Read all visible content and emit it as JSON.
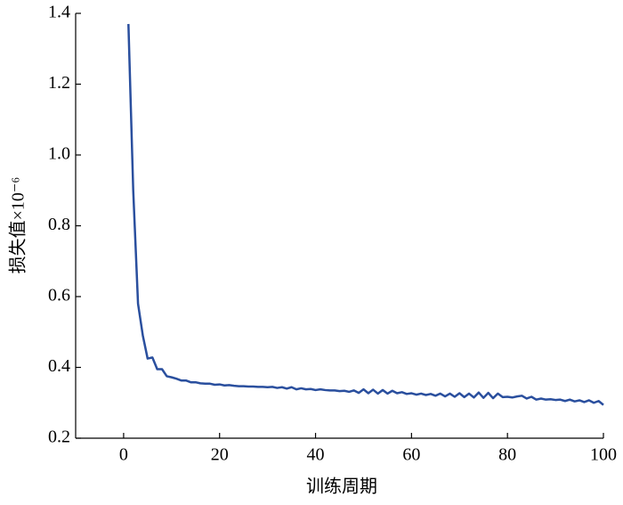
{
  "chart_data": {
    "type": "line",
    "xlabel": "训练周期",
    "ylabel": "损失值×10⁻⁶",
    "x": [
      1,
      2,
      3,
      4,
      5,
      6,
      7,
      8,
      9,
      10,
      11,
      12,
      13,
      14,
      15,
      16,
      17,
      18,
      19,
      20,
      21,
      22,
      23,
      24,
      25,
      26,
      27,
      28,
      29,
      30,
      31,
      32,
      33,
      34,
      35,
      36,
      37,
      38,
      39,
      40,
      41,
      42,
      43,
      44,
      45,
      46,
      47,
      48,
      49,
      50,
      51,
      52,
      53,
      54,
      55,
      56,
      57,
      58,
      59,
      60,
      61,
      62,
      63,
      64,
      65,
      66,
      67,
      68,
      69,
      70,
      71,
      72,
      73,
      74,
      75,
      76,
      77,
      78,
      79,
      80,
      81,
      82,
      83,
      84,
      85,
      86,
      87,
      88,
      89,
      90,
      91,
      92,
      93,
      94,
      95,
      96,
      97,
      98,
      99,
      100
    ],
    "series": [
      {
        "color": "#2a4f9e",
        "values": [
          1.37,
          0.9,
          0.58,
          0.49,
          0.425,
          0.428,
          0.395,
          0.395,
          0.375,
          0.372,
          0.368,
          0.363,
          0.363,
          0.358,
          0.358,
          0.355,
          0.354,
          0.354,
          0.351,
          0.352,
          0.349,
          0.35,
          0.348,
          0.347,
          0.347,
          0.346,
          0.346,
          0.345,
          0.345,
          0.344,
          0.345,
          0.342,
          0.344,
          0.34,
          0.344,
          0.338,
          0.341,
          0.338,
          0.339,
          0.336,
          0.338,
          0.336,
          0.335,
          0.335,
          0.333,
          0.334,
          0.331,
          0.335,
          0.328,
          0.338,
          0.327,
          0.337,
          0.326,
          0.336,
          0.326,
          0.334,
          0.327,
          0.33,
          0.325,
          0.327,
          0.323,
          0.326,
          0.322,
          0.325,
          0.32,
          0.326,
          0.318,
          0.326,
          0.317,
          0.327,
          0.316,
          0.326,
          0.315,
          0.329,
          0.314,
          0.328,
          0.313,
          0.326,
          0.316,
          0.317,
          0.315,
          0.318,
          0.32,
          0.312,
          0.317,
          0.309,
          0.312,
          0.309,
          0.31,
          0.308,
          0.309,
          0.305,
          0.309,
          0.304,
          0.307,
          0.302,
          0.307,
          0.3,
          0.305,
          0.294
        ]
      }
    ],
    "xlim": [
      -10,
      100
    ],
    "xticks": [
      0,
      20,
      40,
      60,
      80,
      100
    ],
    "ylim": [
      0.2,
      1.4
    ],
    "yticks": [
      0.2,
      0.4,
      0.6,
      0.8,
      {
        "value": 1,
        "label": "1.0"
      },
      1.2,
      1.4
    ]
  }
}
